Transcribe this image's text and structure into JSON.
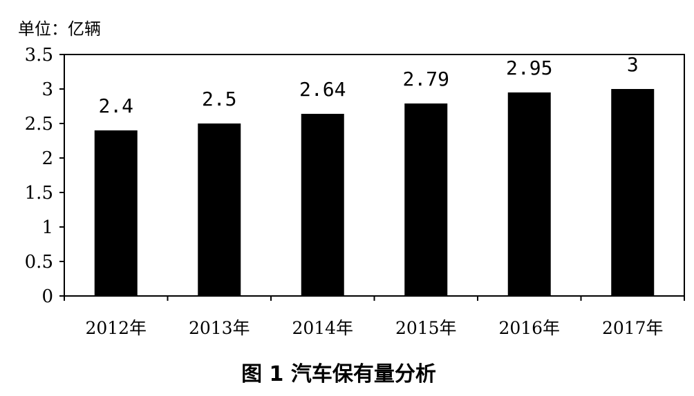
{
  "chart_data": {
    "type": "bar",
    "unit_label": "单位：亿辆",
    "caption": "图 1  汽车保有量分析",
    "categories": [
      "2012年",
      "2013年",
      "2014年",
      "2015年",
      "2016年",
      "2017年"
    ],
    "values": [
      2.4,
      2.5,
      2.64,
      2.79,
      2.95,
      3
    ],
    "data_labels": [
      "2.4",
      "2.5",
      "2.64",
      "2.79",
      "2.95",
      "3"
    ],
    "y_ticks": [
      "0",
      "0.5",
      "1",
      "1.5",
      "2",
      "2.5",
      "3",
      "3.5"
    ],
    "ylim": [
      0,
      3.5
    ],
    "grid": false,
    "bar_color": "#000000"
  }
}
